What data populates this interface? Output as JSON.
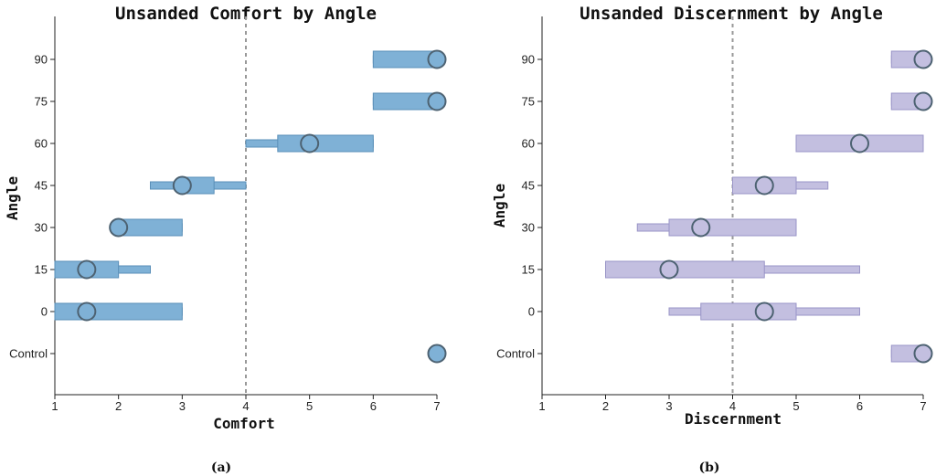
{
  "chart_data": [
    {
      "type": "box",
      "title": "Unsanded Comfort by Angle",
      "xlabel": "Comfort",
      "ylabel": "Angle",
      "subcaption": "(a)",
      "xlim": [
        1,
        7
      ],
      "xticks": [
        1,
        2,
        3,
        4,
        5,
        6,
        7
      ],
      "reference_line_x": 4,
      "categories": [
        "90",
        "75",
        "60",
        "45",
        "30",
        "15",
        "0",
        "Control"
      ],
      "color": "#7fb1d6",
      "stroke": "#5a8fb8",
      "marker_fill": "#7fb1d6",
      "boxes": [
        {
          "category": "90",
          "whisker": [
            6,
            7
          ],
          "iqr": [
            6,
            7
          ],
          "median": 7
        },
        {
          "category": "75",
          "whisker": [
            6,
            7
          ],
          "iqr": [
            6,
            7
          ],
          "median": 7
        },
        {
          "category": "60",
          "whisker": [
            4,
            6
          ],
          "iqr": [
            4.5,
            6
          ],
          "median": 5
        },
        {
          "category": "45",
          "whisker": [
            2.5,
            4
          ],
          "iqr": [
            3,
            3.5
          ],
          "median": 3
        },
        {
          "category": "30",
          "whisker": [
            2,
            3
          ],
          "iqr": [
            2,
            3
          ],
          "median": 2
        },
        {
          "category": "15",
          "whisker": [
            1,
            2.5
          ],
          "iqr": [
            1,
            2
          ],
          "median": 1.5
        },
        {
          "category": "0",
          "whisker": [
            1,
            3
          ],
          "iqr": [
            1,
            3
          ],
          "median": 1.5
        },
        {
          "category": "Control",
          "whisker": [
            7,
            7
          ],
          "iqr": [
            7,
            7
          ],
          "median": 7
        }
      ]
    },
    {
      "type": "box",
      "title": "Unsanded Discernment by Angle",
      "xlabel": "Discernment",
      "ylabel": "Angle",
      "subcaption": "(b)",
      "xlim": [
        1,
        7
      ],
      "xticks": [
        1,
        2,
        3,
        4,
        5,
        6,
        7
      ],
      "reference_line_x": 4,
      "categories": [
        "90",
        "75",
        "60",
        "45",
        "30",
        "15",
        "0",
        "Control"
      ],
      "color": "#c3bfe0",
      "stroke": "#9a95c7",
      "marker_fill": "#c3bfe0",
      "boxes": [
        {
          "category": "90",
          "whisker": [
            6.5,
            7
          ],
          "iqr": [
            6.5,
            7
          ],
          "median": 7
        },
        {
          "category": "75",
          "whisker": [
            6.5,
            7
          ],
          "iqr": [
            6.5,
            7
          ],
          "median": 7
        },
        {
          "category": "60",
          "whisker": [
            5,
            7
          ],
          "iqr": [
            5,
            7
          ],
          "median": 6
        },
        {
          "category": "45",
          "whisker": [
            4,
            5.5
          ],
          "iqr": [
            4,
            5
          ],
          "median": 4.5
        },
        {
          "category": "30",
          "whisker": [
            2.5,
            5
          ],
          "iqr": [
            3,
            5
          ],
          "median": 3.5
        },
        {
          "category": "15",
          "whisker": [
            2,
            6
          ],
          "iqr": [
            2,
            4.5
          ],
          "median": 3
        },
        {
          "category": "0",
          "whisker": [
            3,
            6
          ],
          "iqr": [
            3.5,
            5
          ],
          "median": 4.5
        },
        {
          "category": "Control",
          "whisker": [
            6.5,
            7
          ],
          "iqr": [
            6.5,
            7
          ],
          "median": 7
        }
      ]
    }
  ]
}
